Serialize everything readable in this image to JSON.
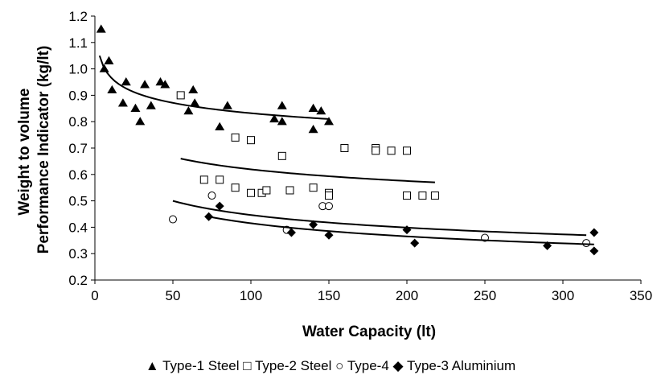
{
  "chart_data": {
    "type": "scatter",
    "xlabel": "Water Capacity (lt)",
    "ylabel": "Weight to volume Performance Indicator (kg/lt)",
    "ylabel_lines": [
      "Weight to volume",
      "Performance Indicator (kg/lt)"
    ],
    "xlim": [
      0,
      350
    ],
    "ylim": [
      0.2,
      1.2
    ],
    "x_ticks": [
      "0",
      "50",
      "100",
      "150",
      "200",
      "250",
      "300",
      "350"
    ],
    "y_ticks": [
      "0.2",
      "0.3",
      "0.4",
      "0.5",
      "0.6",
      "0.7",
      "0.8",
      "0.9",
      "1.0",
      "1.1",
      "1.2"
    ],
    "legend_position": "bottom",
    "grid": false,
    "series": [
      {
        "name": "Type-1 Steel",
        "marker": "triangle",
        "legend_glyph": "▲",
        "points": [
          [
            4,
            1.15
          ],
          [
            6,
            1.0
          ],
          [
            9,
            1.03
          ],
          [
            11,
            0.92
          ],
          [
            18,
            0.87
          ],
          [
            20,
            0.95
          ],
          [
            26,
            0.85
          ],
          [
            29,
            0.8
          ],
          [
            32,
            0.94
          ],
          [
            36,
            0.86
          ],
          [
            42,
            0.95
          ],
          [
            45,
            0.94
          ],
          [
            60,
            0.84
          ],
          [
            63,
            0.92
          ],
          [
            64,
            0.87
          ],
          [
            80,
            0.78
          ],
          [
            85,
            0.86
          ],
          [
            115,
            0.81
          ],
          [
            120,
            0.86
          ],
          [
            120,
            0.8
          ],
          [
            140,
            0.85
          ],
          [
            140,
            0.77
          ],
          [
            145,
            0.84
          ],
          [
            150,
            0.8
          ]
        ],
        "trend": {
          "from": 3,
          "to": 150,
          "y_from": 1.05,
          "y_to": 0.81
        }
      },
      {
        "name": "Type-2 Steel",
        "marker": "square-open",
        "legend_glyph": "□",
        "points": [
          [
            55,
            0.9
          ],
          [
            70,
            0.58
          ],
          [
            80,
            0.58
          ],
          [
            90,
            0.74
          ],
          [
            90,
            0.55
          ],
          [
            100,
            0.73
          ],
          [
            100,
            0.53
          ],
          [
            107,
            0.53
          ],
          [
            110,
            0.54
          ],
          [
            120,
            0.67
          ],
          [
            125,
            0.54
          ],
          [
            140,
            0.55
          ],
          [
            150,
            0.53
          ],
          [
            150,
            0.52
          ],
          [
            160,
            0.7
          ],
          [
            180,
            0.7
          ],
          [
            180,
            0.69
          ],
          [
            190,
            0.69
          ],
          [
            200,
            0.69
          ],
          [
            200,
            0.52
          ],
          [
            210,
            0.52
          ],
          [
            218,
            0.52
          ]
        ],
        "trend": {
          "from": 55,
          "to": 218,
          "y_from": 0.66,
          "y_to": 0.57
        }
      },
      {
        "name": "Type-4",
        "marker": "circle-open",
        "legend_glyph": "○",
        "points": [
          [
            50,
            0.43
          ],
          [
            75,
            0.52
          ],
          [
            123,
            0.39
          ],
          [
            146,
            0.48
          ],
          [
            150,
            0.48
          ],
          [
            250,
            0.36
          ],
          [
            315,
            0.34
          ]
        ],
        "trend": {
          "from": 50,
          "to": 315,
          "y_from": 0.5,
          "y_to": 0.37
        }
      },
      {
        "name": "Type-3 Aluminium",
        "marker": "diamond",
        "legend_glyph": "◆",
        "points": [
          [
            73,
            0.44
          ],
          [
            80,
            0.48
          ],
          [
            126,
            0.38
          ],
          [
            140,
            0.41
          ],
          [
            150,
            0.37
          ],
          [
            200,
            0.39
          ],
          [
            205,
            0.34
          ],
          [
            290,
            0.33
          ],
          [
            320,
            0.38
          ],
          [
            320,
            0.31
          ]
        ],
        "trend": {
          "from": 73,
          "to": 320,
          "y_from": 0.44,
          "y_to": 0.335
        }
      }
    ]
  }
}
